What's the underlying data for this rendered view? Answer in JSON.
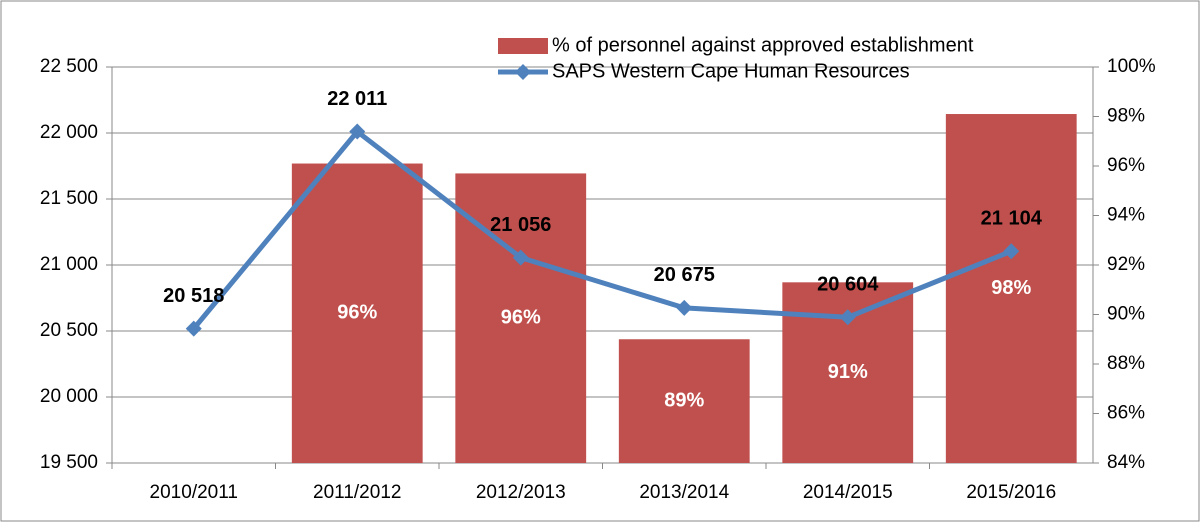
{
  "chart_data": {
    "type": "bar_line",
    "categories": [
      "2010/2011",
      "2011/2012",
      "2012/2013",
      "2013/2014",
      "2014/2015",
      "2015/2016"
    ],
    "series": [
      {
        "name": "% of personnel against approved establishment",
        "type": "bar",
        "axis": "y2",
        "color": "#c0504d",
        "values": [
          null,
          96.1,
          95.7,
          89.0,
          91.3,
          98.1
        ],
        "value_labels": [
          null,
          "96%",
          "96%",
          "89%",
          "91%",
          "98%"
        ]
      },
      {
        "name": "SAPS Western Cape Human Resources",
        "type": "line",
        "color": "#4f81bd",
        "values": [
          20518,
          22011,
          21056,
          20675,
          20604,
          21104
        ],
        "value_labels": [
          "20 518",
          "22 011",
          "21 056",
          "20 675",
          "20 604",
          "21 104"
        ]
      }
    ],
    "ylim": [
      19500,
      22500
    ],
    "yticks": [
      {
        "value": 19500,
        "label": "19 500"
      },
      {
        "value": 20000,
        "label": "20 000"
      },
      {
        "value": 20500,
        "label": "20 500"
      },
      {
        "value": 21000,
        "label": "21 000"
      },
      {
        "value": 21500,
        "label": "21 500"
      },
      {
        "value": 22000,
        "label": "22 000"
      },
      {
        "value": 22500,
        "label": "22 500"
      }
    ],
    "y2lim": [
      84,
      100
    ],
    "y2ticks": [
      {
        "value": 84,
        "label": "84%"
      },
      {
        "value": 86,
        "label": "86%"
      },
      {
        "value": 88,
        "label": "88%"
      },
      {
        "value": 90,
        "label": "90%"
      },
      {
        "value": 92,
        "label": "92%"
      },
      {
        "value": 94,
        "label": "94%"
      },
      {
        "value": 96,
        "label": "96%"
      },
      {
        "value": 98,
        "label": "98%"
      },
      {
        "value": 100,
        "label": "100%"
      }
    ],
    "grid": true,
    "legend": "top-right"
  }
}
